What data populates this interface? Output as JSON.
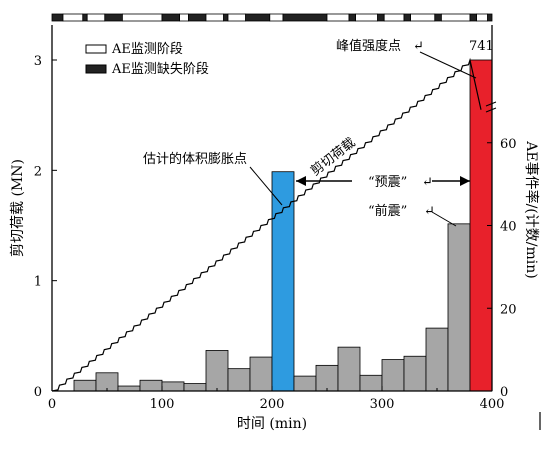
{
  "chart_data": {
    "type": "bar",
    "xlabel": "时间 (min)",
    "ylabel_left": "剪切荷载 (MN)",
    "ylabel_right": "AE事件率/(计数/min)",
    "xlim": [
      0,
      400
    ],
    "ylim_left": [
      0,
      3
    ],
    "ylim_right": [
      0,
      80
    ],
    "x_ticks": [
      0,
      100,
      200,
      300,
      400
    ],
    "y_left_ticks": [
      0,
      1,
      2,
      3
    ],
    "y_right_ticks": [
      0,
      20,
      40,
      60
    ],
    "bin_width": 20,
    "ae_event_rate": {
      "bin_starts": [
        20,
        40,
        60,
        80,
        100,
        120,
        140,
        160,
        180,
        200,
        220,
        240,
        260,
        280,
        300,
        320,
        340,
        360,
        380
      ],
      "values": [
        2.6,
        4.4,
        1.2,
        2.6,
        2.2,
        1.8,
        9.8,
        5.4,
        8.2,
        53,
        3.6,
        6.2,
        10.6,
        3.8,
        7.6,
        8.4,
        15.2,
        40.4,
        80
      ],
      "highlight": {
        "200": "#2e9be0",
        "380": "#e8212b"
      },
      "default_color": "#a6a6a6"
    },
    "shear_load_line": {
      "x": [
        0,
        380,
        390
      ],
      "y": [
        0,
        3.0,
        2.55
      ]
    },
    "monitoring_bar": {
      "segments": [
        {
          "x0": 0,
          "x1": 10,
          "state": "missing"
        },
        {
          "x0": 10,
          "x1": 28,
          "state": "monitored"
        },
        {
          "x0": 28,
          "x1": 32,
          "state": "missing"
        },
        {
          "x0": 32,
          "x1": 48,
          "state": "monitored"
        },
        {
          "x0": 48,
          "x1": 64,
          "state": "missing"
        },
        {
          "x0": 64,
          "x1": 100,
          "state": "monitored"
        },
        {
          "x0": 100,
          "x1": 116,
          "state": "missing"
        },
        {
          "x0": 116,
          "x1": 124,
          "state": "monitored"
        },
        {
          "x0": 124,
          "x1": 140,
          "state": "missing"
        },
        {
          "x0": 140,
          "x1": 156,
          "state": "monitored"
        },
        {
          "x0": 156,
          "x1": 160,
          "state": "missing"
        },
        {
          "x0": 160,
          "x1": 176,
          "state": "monitored"
        },
        {
          "x0": 176,
          "x1": 198,
          "state": "missing"
        },
        {
          "x0": 198,
          "x1": 210,
          "state": "monitored"
        },
        {
          "x0": 210,
          "x1": 250,
          "state": "missing"
        },
        {
          "x0": 250,
          "x1": 270,
          "state": "monitored"
        },
        {
          "x0": 270,
          "x1": 276,
          "state": "missing"
        },
        {
          "x0": 276,
          "x1": 296,
          "state": "monitored"
        },
        {
          "x0": 296,
          "x1": 302,
          "state": "missing"
        },
        {
          "x0": 302,
          "x1": 320,
          "state": "monitored"
        },
        {
          "x0": 320,
          "x1": 326,
          "state": "missing"
        },
        {
          "x0": 326,
          "x1": 348,
          "state": "monitored"
        },
        {
          "x0": 348,
          "x1": 354,
          "state": "missing"
        },
        {
          "x0": 354,
          "x1": 380,
          "state": "monitored"
        },
        {
          "x0": 380,
          "x1": 386,
          "state": "missing"
        },
        {
          "x0": 386,
          "x1": 396,
          "state": "monitored"
        },
        {
          "x0": 396,
          "x1": 400,
          "state": "missing"
        }
      ]
    },
    "legend": [
      {
        "label": "AE监测阶段",
        "style": "open"
      },
      {
        "label": "AE监测缺失阶段",
        "style": "filled"
      }
    ],
    "annotations": {
      "volume_expansion": "估计的体积膨胀点",
      "line_label": "剪切荷载",
      "peak": "峰值强度点",
      "peak_value": "741",
      "premonitory": "“预震”",
      "foreshock": "“前震”",
      "return_mark": "↵"
    },
    "colors": {
      "axis": "#000000",
      "bar_gray": "#a6a6a6",
      "bar_blue": "#2e9be0",
      "bar_red": "#e8212b",
      "line": "#000000"
    }
  }
}
